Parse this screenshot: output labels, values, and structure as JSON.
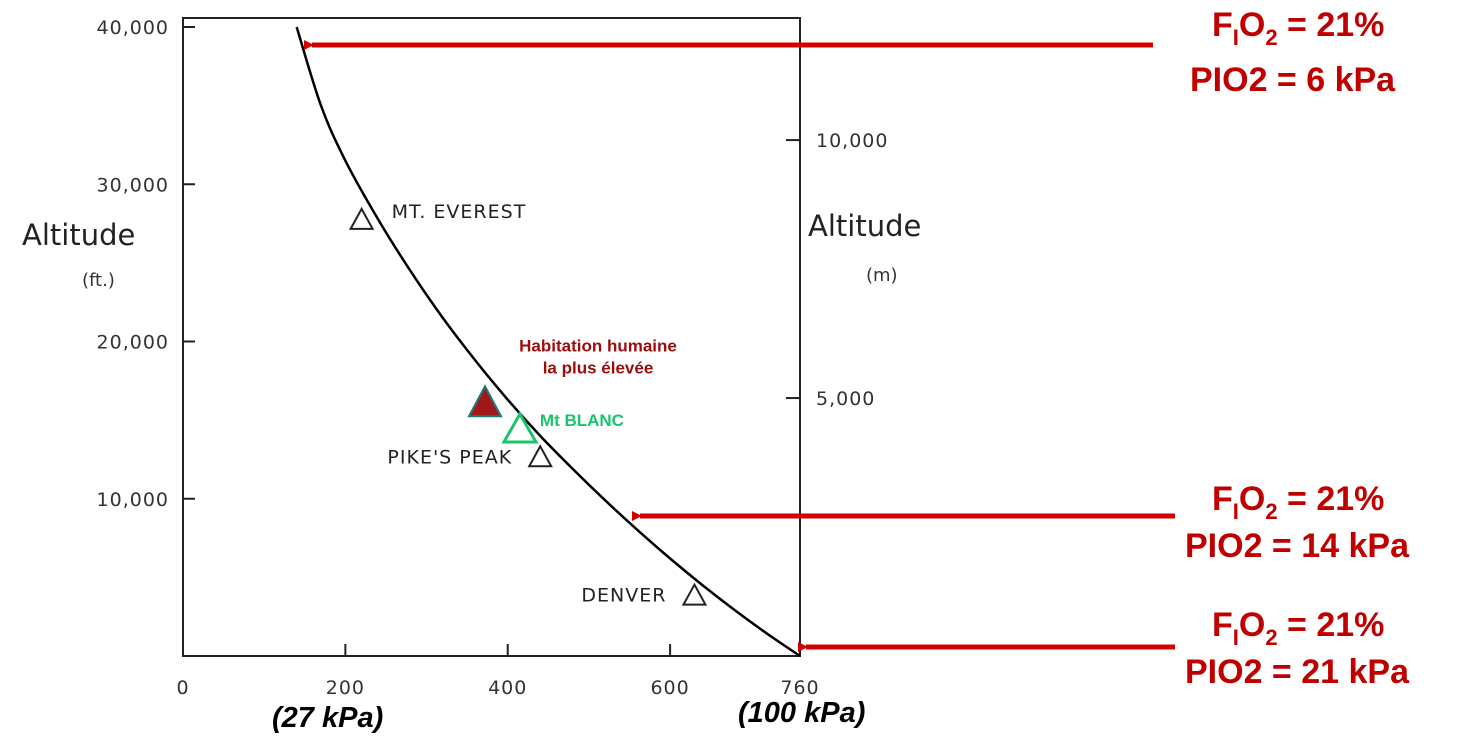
{
  "colors": {
    "arrow": "#d00000",
    "annotation_text": "#c00000",
    "habitation": "#9b0d0d",
    "habitation_fill": "#a01818",
    "habitation_stroke": "#1f7a7a",
    "blanc": "#19c46b",
    "curve": "#000000"
  },
  "chart_data": {
    "type": "line",
    "title": "",
    "xlabel": "",
    "ylabel_left": "Altitude",
    "ylabel_left_unit": "(ft.)",
    "ylabel_right": "Altitude",
    "ylabel_right_unit": "(m)",
    "xlim": [
      0,
      760
    ],
    "ylim": [
      0,
      40000
    ],
    "x_ticks": [
      {
        "value": 0,
        "label": "0"
      },
      {
        "value": 200,
        "label": "200"
      },
      {
        "value": 400,
        "label": "400"
      },
      {
        "value": 600,
        "label": "600"
      },
      {
        "value": 760,
        "label": "760"
      }
    ],
    "y_ticks_left": [
      {
        "value": 10000,
        "label": "10,000"
      },
      {
        "value": 20000,
        "label": "20,000"
      },
      {
        "value": 30000,
        "label": "30,000"
      },
      {
        "value": 40000,
        "label": "40,000"
      }
    ],
    "y_ticks_right": [
      {
        "value": 16404,
        "label": "5,000"
      },
      {
        "value": 32808,
        "label": "10,000"
      }
    ],
    "x_secondary_labels": [
      {
        "value": 200,
        "label": "(27 kPa)"
      },
      {
        "value": 760,
        "label": "(100 kPa)"
      }
    ],
    "series": [
      {
        "x": [
          760,
          720,
          680,
          640,
          600,
          560,
          520,
          480,
          440,
          400,
          360,
          320,
          280,
          240,
          200,
          170,
          140
        ],
        "y": [
          0,
          1400,
          2900,
          4500,
          6200,
          8000,
          9900,
          11900,
          14000,
          16300,
          18800,
          21500,
          24500,
          27800,
          31500,
          35000,
          40000
        ]
      }
    ],
    "markers": [
      {
        "name": "MT. EVEREST",
        "x": 220,
        "y": 27800
      },
      {
        "name": "PIKE'S PEAK",
        "x": 440,
        "y": 12700
      },
      {
        "name": "DENVER",
        "x": 630,
        "y": 3900
      }
    ],
    "highlighted_markers": [
      {
        "name": "Habitation humaine la plus élevée",
        "lines": [
          "Habitation humaine",
          "la plus élevée"
        ],
        "x": 372,
        "y": 16200
      },
      {
        "name": "Mt BLANC",
        "x": 415,
        "y": 14500
      }
    ]
  },
  "annotations": [
    {
      "fio2_main": "F",
      "fio2_sub1": "I",
      "fio2_mid": "O",
      "fio2_sub2": "2",
      "fio2_tail": " = 21%",
      "pio2": "PIO2 = 6 kPa"
    },
    {
      "fio2_main": "F",
      "fio2_sub1": "I",
      "fio2_mid": "O",
      "fio2_sub2": "2",
      "fio2_tail": " = 21%",
      "pio2": "PIO2 = 14 kPa"
    },
    {
      "fio2_main": "F",
      "fio2_sub1": "I",
      "fio2_mid": "O",
      "fio2_sub2": "2",
      "fio2_tail": " = 21%",
      "pio2": "PIO2 = 21 kPa"
    }
  ]
}
